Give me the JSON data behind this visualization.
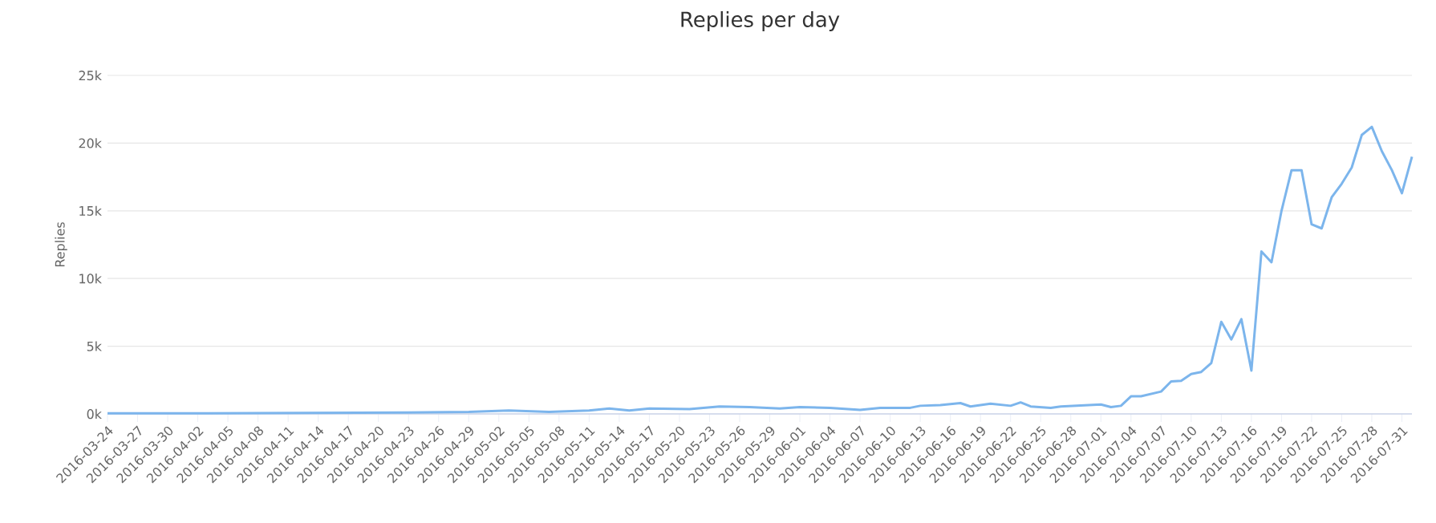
{
  "chart_data": {
    "type": "line",
    "title": "Replies per day",
    "ylabel": "Replies",
    "x": [
      "2016-03-24",
      "2016-04-03",
      "2016-04-13",
      "2016-04-23",
      "2016-04-29",
      "2016-05-03",
      "2016-05-07",
      "2016-05-11",
      "2016-05-13",
      "2016-05-15",
      "2016-05-17",
      "2016-05-21",
      "2016-05-24",
      "2016-05-27",
      "2016-05-30",
      "2016-06-01",
      "2016-06-04",
      "2016-06-07",
      "2016-06-09",
      "2016-06-12",
      "2016-06-13",
      "2016-06-15",
      "2016-06-17",
      "2016-06-18",
      "2016-06-20",
      "2016-06-22",
      "2016-06-23",
      "2016-06-24",
      "2016-06-26",
      "2016-06-27",
      "2016-07-01",
      "2016-07-02",
      "2016-07-03",
      "2016-07-04",
      "2016-07-05",
      "2016-07-07",
      "2016-07-08",
      "2016-07-09",
      "2016-07-10",
      "2016-07-11",
      "2016-07-12",
      "2016-07-13",
      "2016-07-14",
      "2016-07-15",
      "2016-07-16",
      "2016-07-17",
      "2016-07-18",
      "2016-07-19",
      "2016-07-20",
      "2016-07-21",
      "2016-07-22",
      "2016-07-23",
      "2016-07-24",
      "2016-07-25",
      "2016-07-26",
      "2016-07-27",
      "2016-07-28",
      "2016-07-29",
      "2016-07-30",
      "2016-07-31",
      "2016-08-01"
    ],
    "series": [
      {
        "color": "#7cb5ec",
        "values": [
          50,
          50,
          80,
          100,
          150,
          250,
          150,
          250,
          400,
          250,
          400,
          350,
          550,
          500,
          400,
          500,
          450,
          300,
          450,
          450,
          600,
          650,
          800,
          550,
          750,
          600,
          850,
          550,
          450,
          550,
          700,
          500,
          600,
          1300,
          1300,
          1650,
          2400,
          2450,
          2950,
          3100,
          3750,
          6800,
          5500,
          7000,
          3200,
          12000,
          11200,
          15000,
          18000,
          18000,
          14000,
          13700,
          16000,
          17000,
          18200,
          20600,
          21200,
          19400,
          18000,
          16300,
          19000
        ]
      }
    ],
    "xlim": [
      "2016-03-24",
      "2016-08-01"
    ],
    "xticks": [
      "2016-03-24",
      "2016-03-27",
      "2016-03-30",
      "2016-04-02",
      "2016-04-05",
      "2016-04-08",
      "2016-04-11",
      "2016-04-14",
      "2016-04-17",
      "2016-04-20",
      "2016-04-23",
      "2016-04-26",
      "2016-04-29",
      "2016-05-02",
      "2016-05-05",
      "2016-05-08",
      "2016-05-11",
      "2016-05-14",
      "2016-05-17",
      "2016-05-20",
      "2016-05-23",
      "2016-05-26",
      "2016-05-29",
      "2016-06-01",
      "2016-06-04",
      "2016-06-07",
      "2016-06-10",
      "2016-06-13",
      "2016-06-16",
      "2016-06-19",
      "2016-06-22",
      "2016-06-25",
      "2016-06-28",
      "2016-07-01",
      "2016-07-04",
      "2016-07-07",
      "2016-07-10",
      "2016-07-13",
      "2016-07-16",
      "2016-07-19",
      "2016-07-22",
      "2016-07-25",
      "2016-07-28",
      "2016-07-31"
    ],
    "ylim": [
      0,
      25000
    ],
    "yticks": [
      {
        "value": 0,
        "label": "0k"
      },
      {
        "value": 5000,
        "label": "5k"
      },
      {
        "value": 10000,
        "label": "10k"
      },
      {
        "value": 15000,
        "label": "15k"
      },
      {
        "value": 20000,
        "label": "20k"
      },
      {
        "value": 25000,
        "label": "25k"
      }
    ],
    "grid": "y",
    "legend": false,
    "marker": "none",
    "line_style": "solid"
  }
}
